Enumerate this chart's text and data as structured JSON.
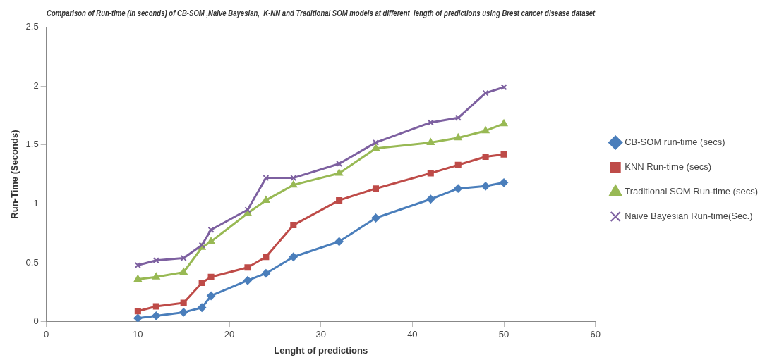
{
  "chart_data": {
    "type": "line",
    "title": "Comparison of Run-time (in seconds) of CB-SOM ,Naive Bayesian,  K-NN and Traditional SOM models at different  length of predictions using Brest cancer disease dataset",
    "xlabel": "Lenght of predictions",
    "ylabel": "Run-Time (Seconds)",
    "x": [
      10,
      12,
      15,
      17,
      18,
      22,
      24,
      27,
      32,
      36,
      42,
      45,
      48,
      50
    ],
    "series": [
      {
        "name": "CB-SOM run-time (secs)",
        "color": "#4a7ebb",
        "marker": "diamond",
        "values": [
          0.03,
          0.05,
          0.08,
          0.12,
          0.22,
          0.35,
          0.41,
          0.55,
          0.68,
          0.88,
          1.04,
          1.13,
          1.15,
          1.18
        ]
      },
      {
        "name": "KNN Run-time (secs)",
        "color": "#be4b48",
        "marker": "square",
        "values": [
          0.09,
          0.13,
          0.16,
          0.33,
          0.38,
          0.46,
          0.55,
          0.82,
          1.03,
          1.13,
          1.26,
          1.33,
          1.4,
          1.42
        ]
      },
      {
        "name": "Traditional SOM Run-time (secs)",
        "color": "#98b954",
        "marker": "triangle",
        "values": [
          0.36,
          0.38,
          0.42,
          0.63,
          0.68,
          0.92,
          1.03,
          1.16,
          1.26,
          1.47,
          1.52,
          1.56,
          1.62,
          1.68
        ]
      },
      {
        "name": "Naive Bayesian Run-time(Sec.)",
        "color": "#7d60a0",
        "marker": "cross",
        "values": [
          0.48,
          0.52,
          0.54,
          0.65,
          0.78,
          0.95,
          1.22,
          1.22,
          1.34,
          1.52,
          1.69,
          1.73,
          1.94,
          1.99
        ]
      }
    ],
    "xlim": [
      0,
      60
    ],
    "xticks": [
      0,
      10,
      20,
      30,
      40,
      50,
      60
    ],
    "ylim": [
      0,
      2.5
    ],
    "yticks": [
      0,
      0.5,
      1,
      1.5,
      2,
      2.5
    ],
    "grid": false,
    "legend": "right",
    "line_style": "solid"
  }
}
